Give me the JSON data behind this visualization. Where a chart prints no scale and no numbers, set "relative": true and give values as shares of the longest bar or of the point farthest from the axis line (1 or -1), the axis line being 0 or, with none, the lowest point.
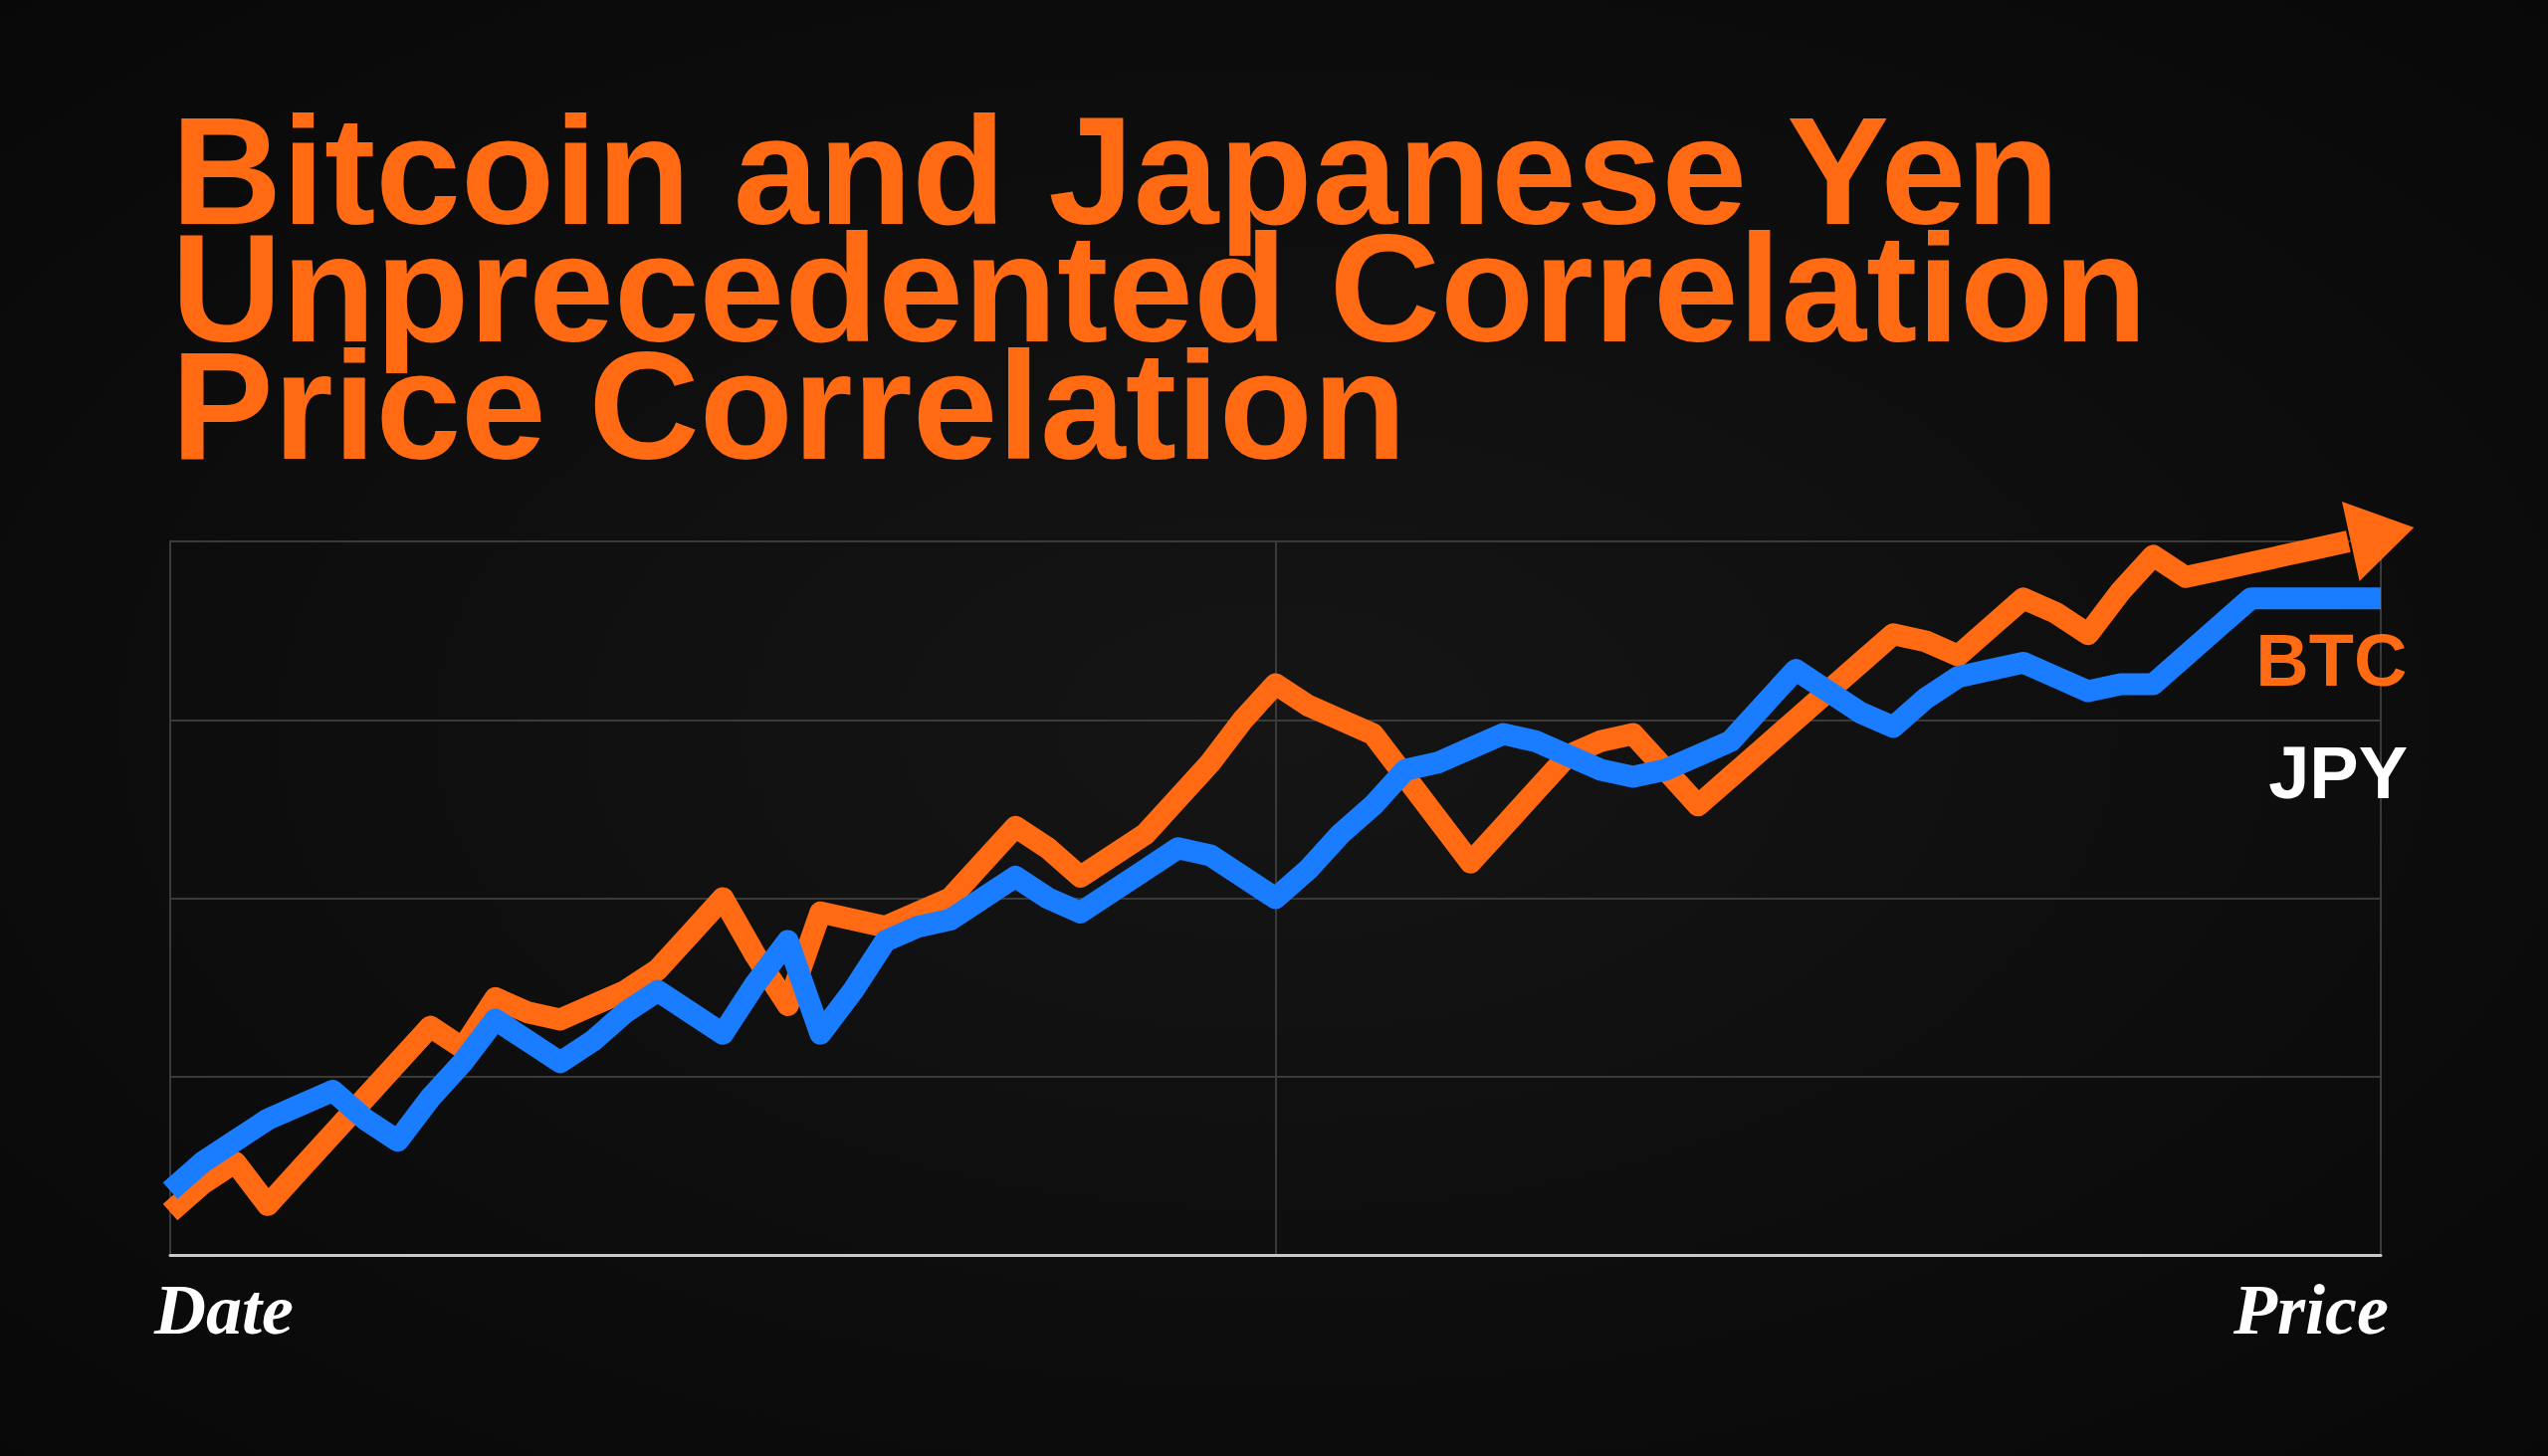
{
  "chart_data": {
    "type": "line",
    "title": "Bitcoin and Japanese Yen Unprecedented Correlation Price Correlation",
    "xlabel": "Date",
    "annotations": [
      "Price"
    ],
    "relative": true,
    "categories": [
      null,
      null,
      null,
      null,
      null,
      null,
      null,
      null,
      null,
      null,
      null,
      null,
      null,
      null,
      null,
      null,
      null,
      null,
      null,
      null,
      null,
      null,
      null,
      null,
      null,
      null,
      null,
      null,
      null,
      null,
      null,
      null,
      null,
      null,
      null,
      null,
      null,
      null,
      null,
      null,
      null,
      null,
      null,
      null,
      null,
      null,
      null,
      null,
      null,
      null,
      null,
      null,
      null,
      null,
      null,
      null,
      null,
      null,
      null,
      null,
      null,
      null,
      null,
      null,
      null,
      null,
      null,
      null,
      null
    ],
    "series": [
      {
        "name": "BTC",
        "color": "#ff6a13",
        "values": [
          0.06,
          0.1,
          0.13,
          0.07,
          0.12,
          0.17,
          0.22,
          0.27,
          0.32,
          0.29,
          0.36,
          0.34,
          0.33,
          0.35,
          0.37,
          0.4,
          0.45,
          0.5,
          0.42,
          0.35,
          0.48,
          0.47,
          0.46,
          0.48,
          0.5,
          0.55,
          0.6,
          0.57,
          0.53,
          0.56,
          0.59,
          0.64,
          0.69,
          0.75,
          0.8,
          0.77,
          0.75,
          0.73,
          0.67,
          0.61,
          0.55,
          0.6,
          0.65,
          0.7,
          0.72,
          0.73,
          0.68,
          0.63,
          0.67,
          0.71,
          0.75,
          0.79,
          0.83,
          0.87,
          0.86,
          0.84,
          0.88,
          0.92,
          0.9,
          0.87,
          0.93,
          0.98,
          0.95,
          0.96,
          0.97,
          0.98,
          0.99,
          1,
          null
        ]
      },
      {
        "name": "JPY",
        "color": "#1a7cff",
        "values": [
          0.09,
          0.13,
          0.16,
          0.19,
          0.21,
          0.23,
          0.19,
          0.16,
          0.22,
          0.27,
          0.33,
          0.3,
          0.27,
          0.3,
          0.34,
          0.37,
          0.34,
          0.31,
          0.38,
          0.44,
          0.31,
          0.37,
          0.44,
          0.46,
          0.47,
          0.5,
          0.53,
          0.5,
          0.48,
          0.51,
          0.54,
          0.57,
          0.56,
          0.53,
          0.5,
          0.54,
          0.59,
          0.63,
          0.68,
          0.69,
          0.71,
          0.73,
          0.72,
          0.7,
          0.68,
          0.67,
          0.68,
          0.7,
          0.72,
          0.77,
          0.82,
          0.79,
          0.76,
          0.74,
          0.78,
          0.81,
          0.82,
          0.83,
          0.81,
          0.79,
          0.8,
          0.8,
          0.84,
          0.88,
          0.92,
          0.92,
          0.92,
          0.92,
          0.92
        ]
      }
    ],
    "grid": true,
    "marker": "none",
    "line_style": "solid"
  }
}
